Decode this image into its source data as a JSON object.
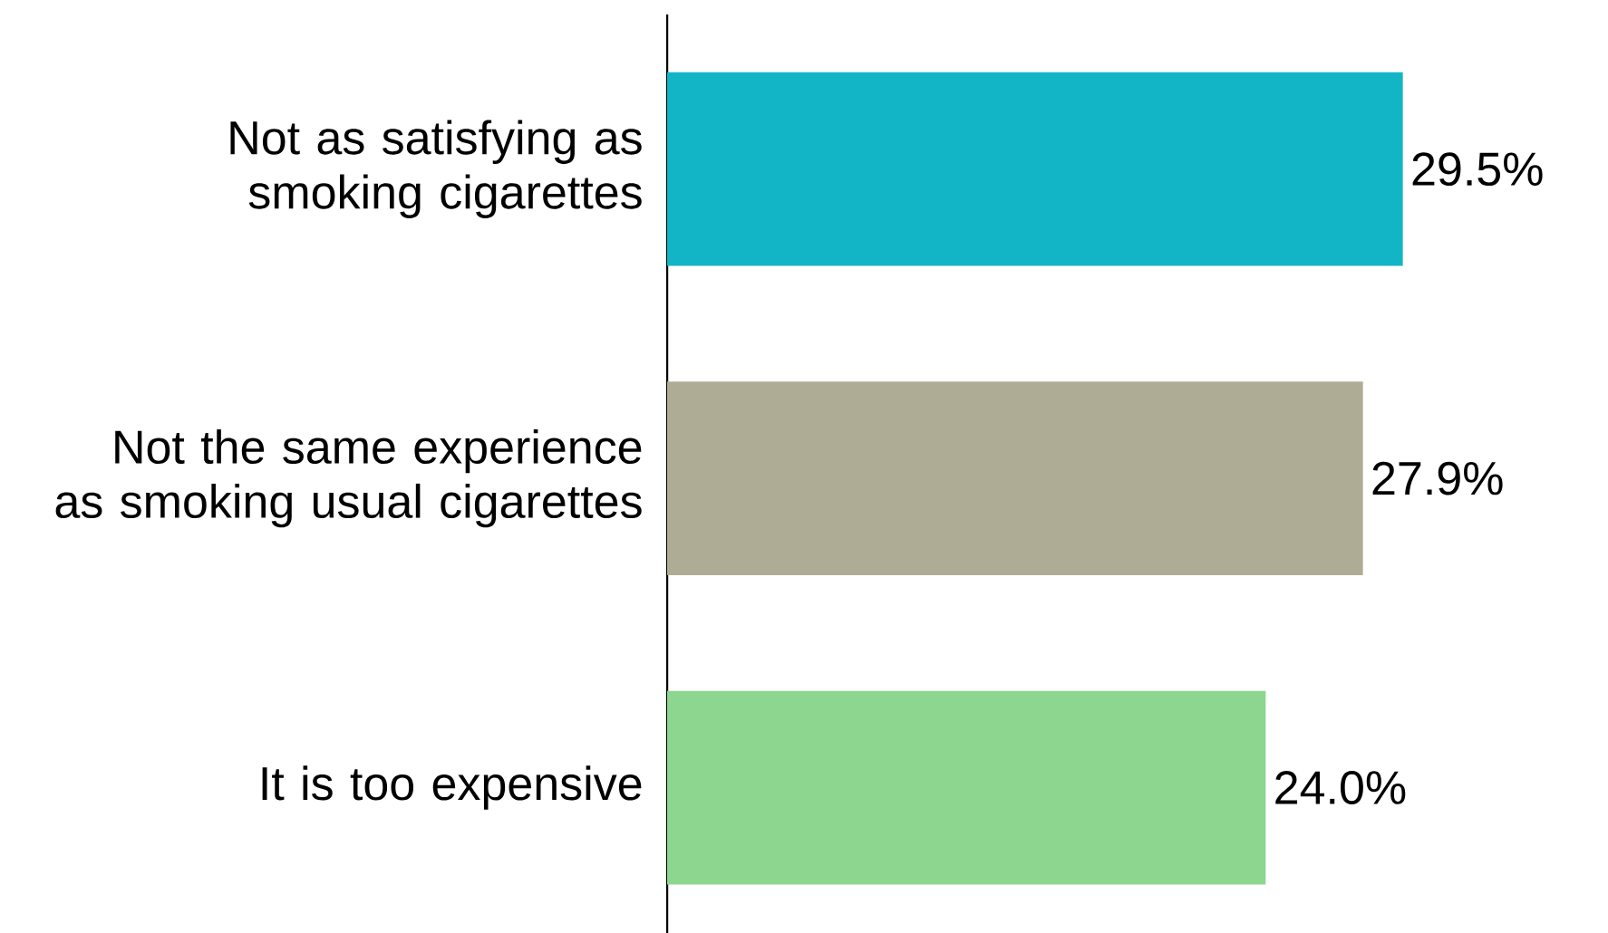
{
  "chart_data": {
    "type": "bar",
    "orientation": "horizontal",
    "categories": [
      "Not as satisfying as smoking cigarettes",
      "Not the same experience as smoking usual cigarettes",
      "It is too expensive"
    ],
    "values": [
      29.5,
      27.9,
      24.0
    ],
    "colors": [
      "#12b5c6",
      "#aeac94",
      "#8cd68f"
    ],
    "value_labels": [
      "29.5%",
      "27.9%",
      "24.0%"
    ]
  }
}
